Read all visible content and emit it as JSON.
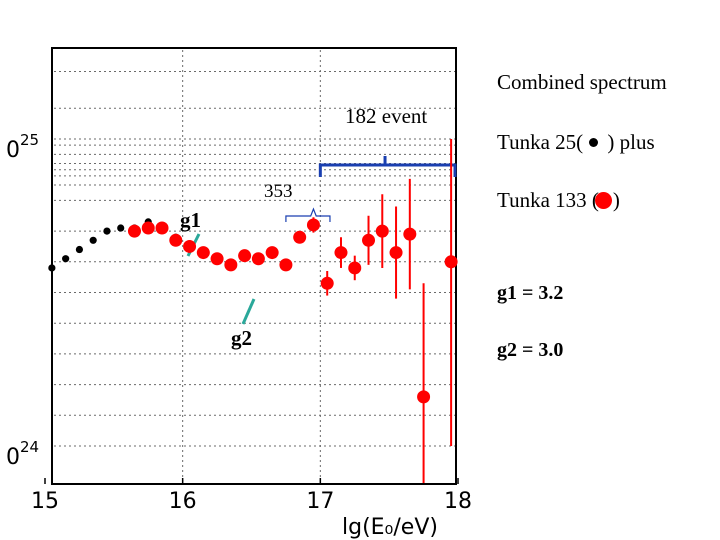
{
  "chart_data": {
    "type": "scatter",
    "xlabel": "lg(E₀/eV)",
    "ylabel": "",
    "xlim": [
      15,
      18
    ],
    "ylim_log": [
      24,
      25
    ],
    "x_ticks": [
      "15",
      "16",
      "17",
      "18"
    ],
    "y_ticks": [
      {
        "base": "0",
        "exp": "25",
        "log": 25
      },
      {
        "base": "0",
        "exp": "24",
        "log": 24
      }
    ],
    "grid": true,
    "series": [
      {
        "name": "Tunka 25",
        "color": "#000000",
        "points": [
          {
            "x": 15.05,
            "y": 24.58
          },
          {
            "x": 15.15,
            "y": 24.61
          },
          {
            "x": 15.25,
            "y": 24.64
          },
          {
            "x": 15.35,
            "y": 24.67
          },
          {
            "x": 15.45,
            "y": 24.7
          },
          {
            "x": 15.55,
            "y": 24.71
          },
          {
            "x": 15.65,
            "y": 24.71
          },
          {
            "x": 15.75,
            "y": 24.73
          },
          {
            "x": 15.85,
            "y": 24.71
          },
          {
            "x": 15.95,
            "y": 24.68
          },
          {
            "x": 16.05,
            "y": 24.65,
            "err": 0.02
          }
        ]
      },
      {
        "name": "Tunka 133",
        "color": "#ff0000",
        "points": [
          {
            "x": 15.65,
            "y": 24.7
          },
          {
            "x": 15.75,
            "y": 24.71
          },
          {
            "x": 15.85,
            "y": 24.71
          },
          {
            "x": 15.95,
            "y": 24.67,
            "err": 0.015
          },
          {
            "x": 16.05,
            "y": 24.65
          },
          {
            "x": 16.15,
            "y": 24.63
          },
          {
            "x": 16.25,
            "y": 24.61
          },
          {
            "x": 16.35,
            "y": 24.59
          },
          {
            "x": 16.45,
            "y": 24.62
          },
          {
            "x": 16.55,
            "y": 24.61
          },
          {
            "x": 16.65,
            "y": 24.63
          },
          {
            "x": 16.75,
            "y": 24.59
          },
          {
            "x": 16.85,
            "y": 24.68,
            "err": 0.02
          },
          {
            "x": 16.95,
            "y": 24.72,
            "err": 0.025
          },
          {
            "x": 17.05,
            "y": 24.53,
            "err": 0.04
          },
          {
            "x": 17.15,
            "y": 24.63,
            "err": 0.05
          },
          {
            "x": 17.25,
            "y": 24.58,
            "err": 0.04
          },
          {
            "x": 17.35,
            "y": 24.67,
            "err": 0.08
          },
          {
            "x": 17.45,
            "y": 24.7,
            "err": 0.12
          },
          {
            "x": 17.55,
            "y": 24.63,
            "err": 0.15
          },
          {
            "x": 17.65,
            "y": 24.69,
            "err": 0.18
          },
          {
            "x": 17.75,
            "y": 24.16,
            "up": 0.37,
            "down": 0.43
          },
          {
            "x": 17.95,
            "y": 24.6,
            "up": 0.4,
            "down": 0.6
          }
        ]
      }
    ],
    "annotations": {
      "event_count": "182  event",
      "n353": "353",
      "g1_label": "g1",
      "g2_label": "g2"
    },
    "fit_slopes": {
      "g1": 3.2,
      "g2": 3.0
    }
  },
  "legend": {
    "title": "Combined spectrum",
    "tunka25_prefix": "Tunka 25(",
    "tunka25_suffix": " ) plus",
    "tunka133_prefix": "Tunka 133 (",
    "tunka133_suffix": ")",
    "g1_text": "g1 = 3.2",
    "g2_text": "g2 = 3.0"
  },
  "colors": {
    "bracket": "#1a3fb0",
    "arrow": "#2aa89a",
    "grid": "#6a6a6a"
  }
}
